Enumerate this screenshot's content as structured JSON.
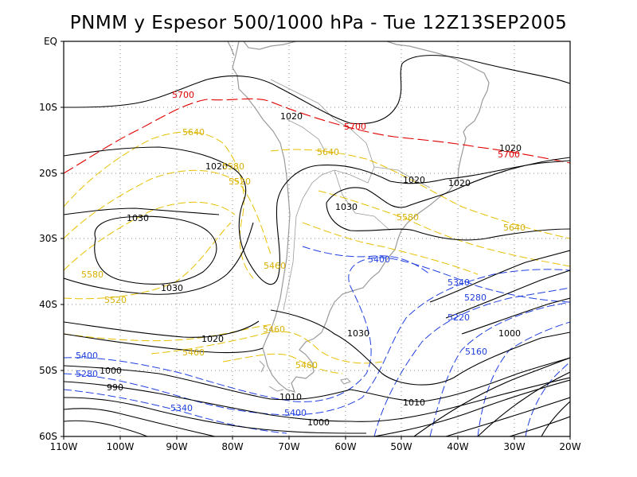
{
  "title": "PNMM y Espesor 500/1000 hPa - Tue 12Z13SEP2005",
  "colors": {
    "isobar": "#000000",
    "thickness_red": "#e00000",
    "thickness_yellow": "#e8c000",
    "thickness_blue": "#2040e0",
    "coastline": "#9a9a9a",
    "grid": "#888888"
  },
  "axes": {
    "lat_labels": [
      "EQ",
      "10S",
      "20S",
      "30S",
      "40S",
      "50S",
      "60S"
    ],
    "lon_labels": [
      "110W",
      "100W",
      "90W",
      "80W",
      "70W",
      "60W",
      "50W",
      "40W",
      "30W",
      "20W"
    ],
    "lat_range": [
      -60,
      0
    ],
    "lon_range": [
      -110,
      -20
    ],
    "grid": true
  },
  "contour_labels": {
    "isobars": [
      "1020",
      "1020",
      "1020",
      "1020",
      "1030",
      "1030",
      "1030",
      "1020",
      "1030",
      "1020",
      "1000",
      "990",
      "1010",
      "1000",
      "1010",
      "1000"
    ],
    "thickness_red": [
      "5700",
      "5700",
      "5700"
    ],
    "thickness_yellow": [
      "5640",
      "5580",
      "5520",
      "5640",
      "5580",
      "5640",
      "5580",
      "5520",
      "5460",
      "5460",
      "5460",
      "5460"
    ],
    "thickness_blue": [
      "5400",
      "5340",
      "5280",
      "5220",
      "5160",
      "5400",
      "5280",
      "5340",
      "5400"
    ]
  }
}
